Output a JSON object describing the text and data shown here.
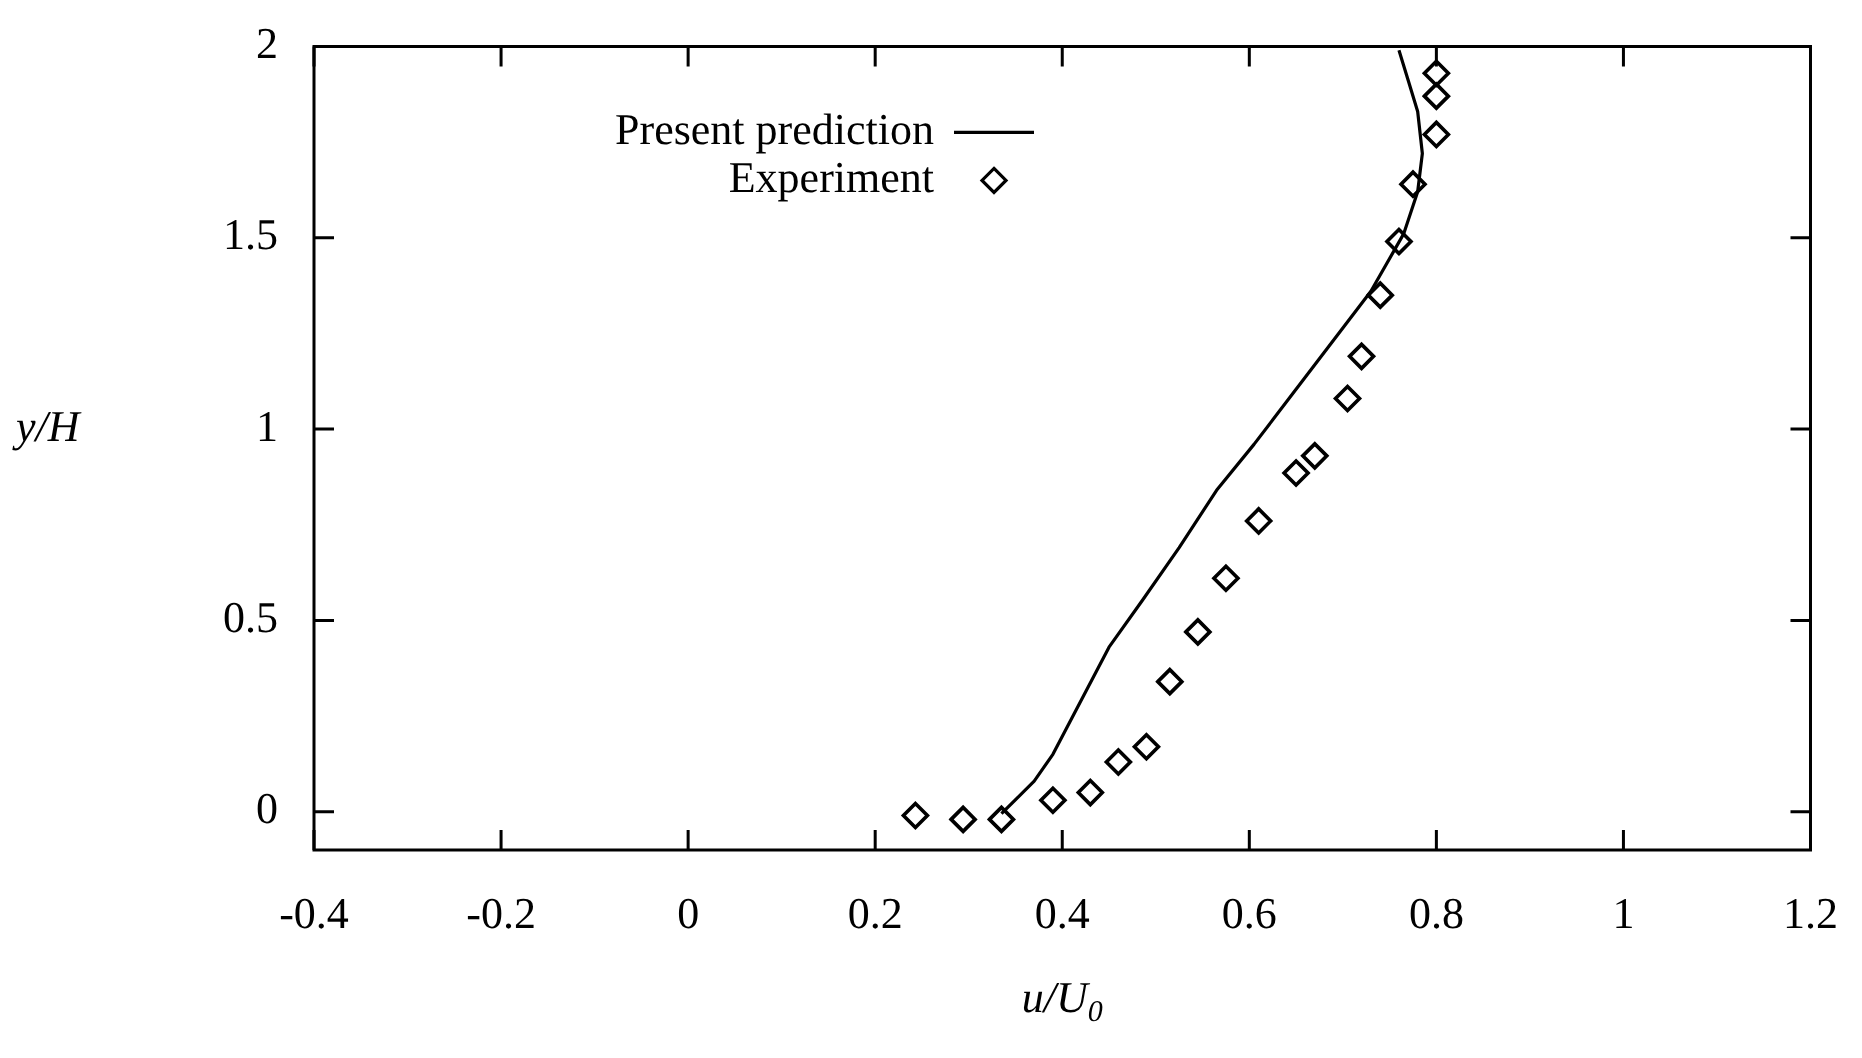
{
  "chart_data": {
    "type": "scatter",
    "xlabel": "u/U$_{0}$",
    "ylabel": "y/H",
    "xlim": [
      -0.4,
      1.2
    ],
    "ylim": [
      -0.1,
      2
    ],
    "xticks": [
      -0.4,
      -0.2,
      0,
      0.2,
      0.4,
      0.6,
      0.8,
      1,
      1.2
    ],
    "yticks": [
      0,
      0.5,
      1,
      1.5,
      2
    ],
    "grid": false,
    "legend": "top left",
    "series": [
      {
        "name": "Present prediction",
        "type": "line",
        "color": "#000000",
        "marker": "none",
        "line_style": "solid",
        "x": [
          0.335,
          0.37,
          0.39,
          0.42,
          0.45,
          0.485,
          0.525,
          0.565,
          0.605,
          0.68,
          0.73,
          0.765,
          0.78,
          0.785,
          0.78,
          0.77,
          0.76
        ],
        "values": [
          -0.005,
          0.08,
          0.15,
          0.29,
          0.43,
          0.55,
          0.69,
          0.84,
          0.96,
          1.2,
          1.36,
          1.51,
          1.62,
          1.72,
          1.83,
          1.91,
          1.99
        ]
      },
      {
        "name": "Experiment",
        "type": "scatter",
        "color": "#000000",
        "marker": "diamond",
        "x": [
          0.243,
          0.294,
          0.335,
          0.39,
          0.43,
          0.46,
          0.49,
          0.515,
          0.545,
          0.575,
          0.61,
          0.65,
          0.67,
          0.705,
          0.72,
          0.74,
          0.76,
          0.775,
          0.8,
          0.8,
          0.8
        ],
        "values": [
          -0.01,
          -0.02,
          -0.02,
          0.03,
          0.05,
          0.13,
          0.17,
          0.34,
          0.47,
          0.61,
          0.76,
          0.885,
          0.93,
          1.08,
          1.19,
          1.35,
          1.49,
          1.64,
          1.77,
          1.87,
          1.93
        ]
      }
    ]
  }
}
